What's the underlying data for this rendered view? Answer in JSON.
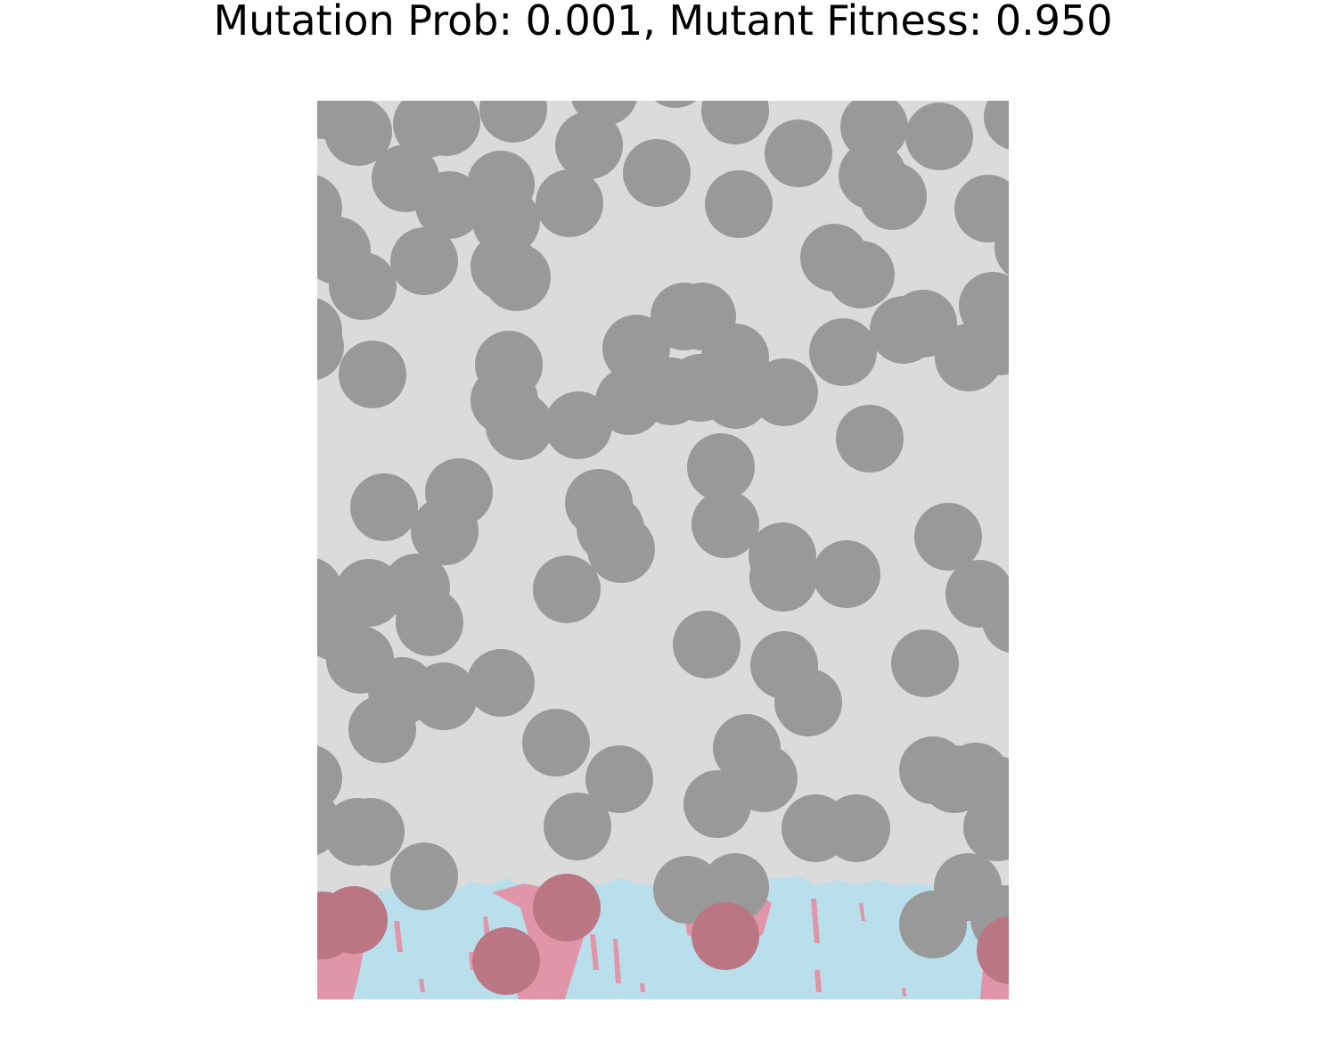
{
  "figure": {
    "title": "Mutation Prob: 0.001, Mutant Fitness: 0.950"
  },
  "colors": {
    "background": "#dbdbdb",
    "obstacle": "#999999",
    "wild_type": "#b8dfeb",
    "mutant": "#e095a8",
    "obstacle_over_population": "#bb7684"
  }
}
